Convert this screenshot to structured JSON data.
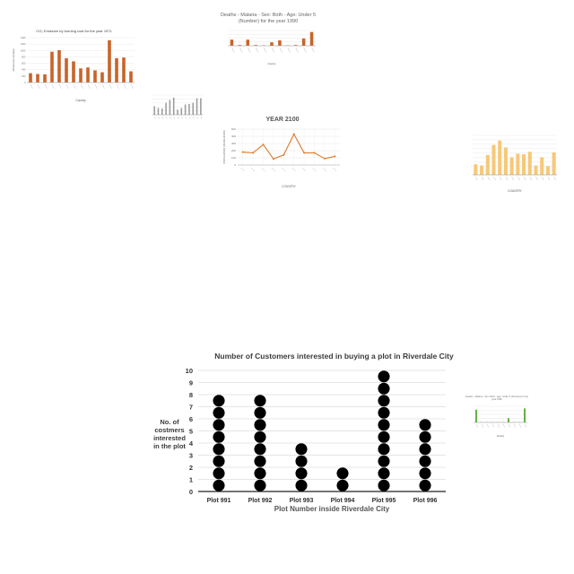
{
  "chart_data": [
    {
      "type": "dot",
      "title": "Number of Customers interested in buying a plot in Riverdale City",
      "xlabel": "Plot Number inside Riverdale City",
      "ylabel": "No. of costmers interested in the plot",
      "categories": [
        "Plot 991",
        "Plot 992",
        "Plot 993",
        "Plot 994",
        "Plot 995",
        "Plot 996"
      ],
      "values": [
        8,
        8,
        4,
        2,
        10,
        6
      ],
      "ylim": [
        0,
        10
      ],
      "yticks": [
        0,
        1,
        2,
        3,
        4,
        5,
        6,
        7,
        8,
        9,
        10
      ],
      "grid": true,
      "color": "#000000"
    },
    {
      "type": "bar",
      "title": "CO₂ Emission by burning coal for the year 1971",
      "xlabel": "Country",
      "ylabel": "Amount (in tonnes)",
      "values": [
        290,
        265,
        255,
        960,
        1010,
        760,
        660,
        440,
        470,
        380,
        320,
        1320,
        760,
        780,
        350
      ],
      "ylim": [
        0,
        1400
      ],
      "yticks": [
        0,
        200,
        400,
        600,
        800,
        1000,
        1200,
        1400
      ],
      "color": "#C8642A"
    },
    {
      "type": "bar",
      "title": "Deaths - Malaria - Sex: Both - Age: Under 5 (Number) for the year 1990",
      "xlabel": "Country",
      "values": [
        1.6,
        0.2,
        1.6,
        0.2,
        0.1,
        0.9,
        1.4,
        0.1,
        0.2,
        1.9,
        3.6
      ],
      "ylim": [
        0,
        4
      ],
      "color": "#C8642A"
    },
    {
      "type": "bar",
      "color": "#9A9A9A",
      "values": [
        3,
        2.4,
        2.2,
        4.2,
        5.2,
        6,
        1.8,
        2.4,
        3.6,
        3.8,
        4.2,
        5.8,
        5.8
      ]
    },
    {
      "type": "line",
      "title": "YEAR 2100",
      "xlabel": "COUNTRY",
      "ylabel": "POPULATION (IN MILLIONS)",
      "values": [
        180,
        170,
        285,
        85,
        140,
        430,
        170,
        170,
        90,
        120
      ],
      "ylim": [
        0,
        500
      ],
      "yticks": [
        0,
        100,
        200,
        300,
        400,
        500
      ],
      "color": "#E07A2B"
    },
    {
      "type": "bar",
      "xlabel": "COUNTRY",
      "color": "#F6C878",
      "values": [
        1.7,
        1.5,
        3.2,
        4.8,
        5.5,
        4.4,
        2.8,
        3.4,
        3.3,
        3.7,
        1.5,
        2.8,
        1.4,
        3.6
      ]
    },
    {
      "type": "bar",
      "title": "Deaths - Malaria - Sex: Both - Age: Under 5 (Number) for the year 1990",
      "xlabel": "Country",
      "color": "#54A832",
      "values": [
        4.2,
        0.1,
        0.1,
        0.1,
        0.1,
        0.1,
        1.4,
        0.1,
        0.1,
        4.6
      ]
    }
  ]
}
